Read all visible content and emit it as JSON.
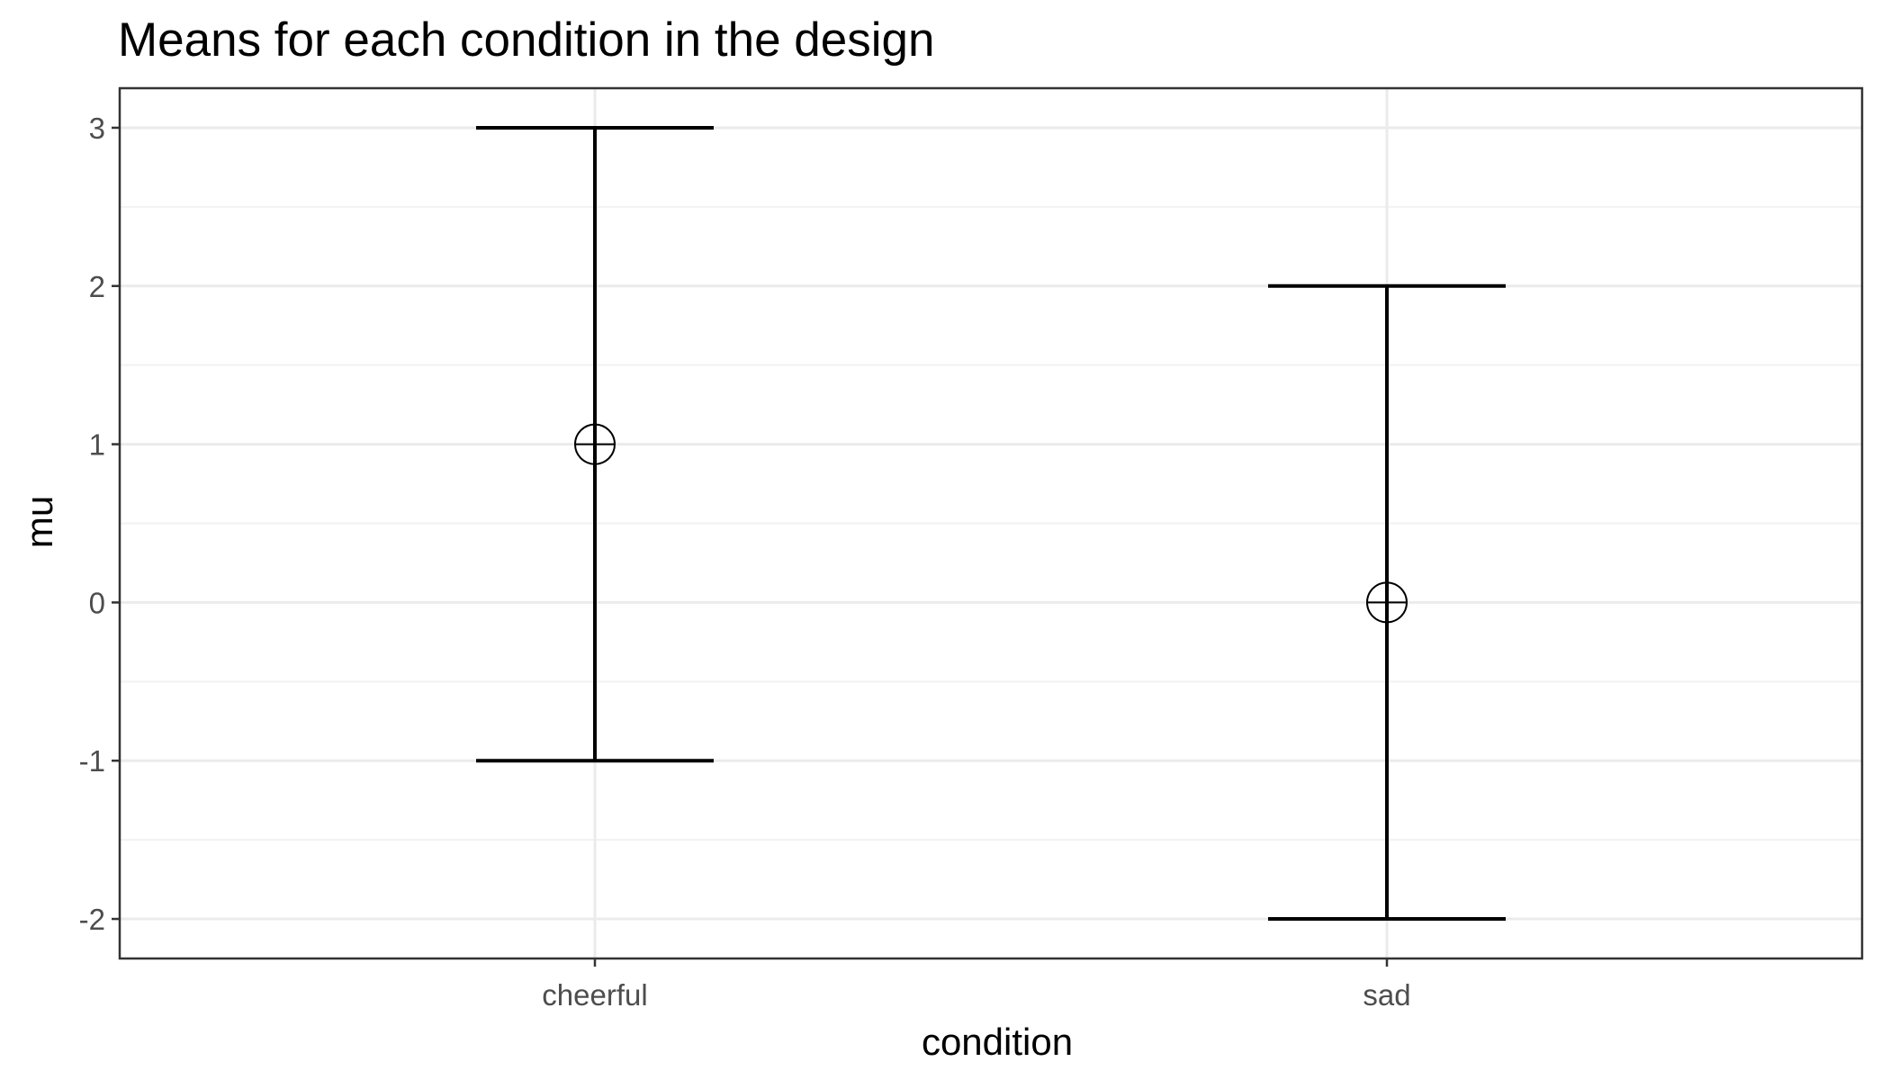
{
  "chart_data": {
    "type": "errorbar",
    "title": "Means for each condition in the design",
    "xlabel": "condition",
    "ylabel": "mu",
    "categories": [
      "cheerful",
      "sad"
    ],
    "points": [
      {
        "category": "cheerful",
        "mean": 1,
        "lower": -1,
        "upper": 3
      },
      {
        "category": "sad",
        "mean": 0,
        "lower": -2,
        "upper": 2
      }
    ],
    "yticks": [
      -2,
      -1,
      0,
      1,
      2,
      3
    ],
    "ylim": [
      -2.25,
      3.25
    ],
    "grid": true,
    "legend": "none",
    "point_marker": "circle-cross"
  },
  "colors": {
    "background": "#ffffff",
    "panel_border": "#333333",
    "grid_major": "#ebebeb",
    "grid_minor": "#f2f2f2",
    "marks": "#000000",
    "tick_text": "#4d4d4d"
  }
}
